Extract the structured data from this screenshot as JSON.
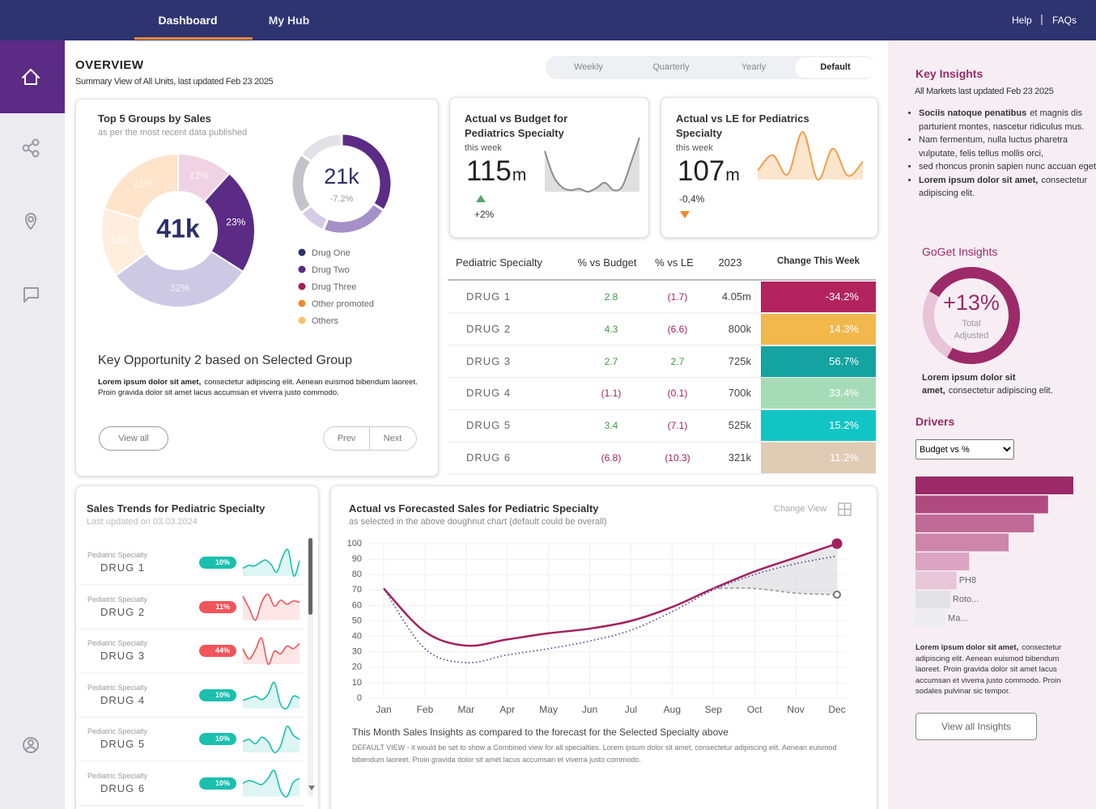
{
  "nav": {
    "tabs": [
      "Dashboard",
      "My Hub"
    ],
    "active_tab": 0,
    "links": [
      "Help",
      "FAQs"
    ]
  },
  "overview": {
    "title": "OVERVIEW",
    "subtitle": "Summary View of All Units, last updated Feb 23 2025",
    "periods": [
      "Weekly",
      "Quarterly",
      "Yearly",
      "Default"
    ],
    "active_period": 3
  },
  "top_groups": {
    "title": "Top 5 Groups by Sales",
    "subtitle": "as per the most recent data published",
    "pie": {
      "type": "pie",
      "center_label": "41k",
      "values": [
        12,
        23,
        32,
        15,
        21
      ],
      "value_labels": [
        "12%",
        "23%",
        "32%",
        "15%",
        "21%"
      ],
      "colors": [
        "#efd3e4",
        "#5b2b85",
        "#cdc9e4",
        "#fdeedd",
        "#fde4cb"
      ]
    },
    "donut": {
      "type": "donut",
      "center_label": "21k",
      "center_sublabel": "-7.2%",
      "values": [
        34,
        22,
        9,
        20,
        15
      ],
      "colors": [
        "#5b2b85",
        "#a590c8",
        "#d6cce6",
        "#c2c2c8",
        "#e2e2e6"
      ]
    },
    "legend": [
      {
        "name": "Drug One",
        "color": "#2b2f6b"
      },
      {
        "name": "Drug Two",
        "color": "#5b2b85"
      },
      {
        "name": "Drug Three",
        "color": "#a3205f"
      },
      {
        "name": "Other promoted",
        "color": "#ee8a2d"
      },
      {
        "name": "Others",
        "color": "#f6c46a"
      }
    ],
    "opportunity": {
      "title": "Key Opportunity 2 based on Selected Group",
      "lead": "Lorem ipsum dolor sit amet,",
      "text": "consectetur adipiscing elit. Aenean euismod bibendum laoreet. Proin gravida dolor sit amet lacus accumsan et viverra justo commodo."
    },
    "buttons": [
      "View all",
      "Prev",
      "Next"
    ]
  },
  "kpis": [
    {
      "title": "Actual vs Budget for Pediatrics Specialty",
      "period": "this week",
      "value": 115,
      "unit": "m",
      "change": "+2%",
      "direction": "up",
      "arrow_color": "#5aa469",
      "color": "#8c8c8c",
      "spark": [
        78,
        45,
        30,
        26,
        28,
        24,
        29,
        36,
        26,
        31,
        62,
        96
      ]
    },
    {
      "title": "Actual vs LE for Pediatrics Specialty",
      "period": "this week",
      "value": 107,
      "unit": "m",
      "change": "-0,4%",
      "direction": "down",
      "arrow_color": "#ee8a2d",
      "color": "#f0a04b",
      "spark": [
        28,
        52,
        22,
        88,
        14,
        62,
        20,
        42
      ]
    }
  ],
  "table": {
    "header": [
      "Pediatric Specialty",
      "% vs Budget",
      "% vs LE",
      "2023",
      "Change This Week"
    ],
    "rows": [
      [
        "DRUG 1",
        "2.8",
        "(1.7)",
        "4.05m",
        "-34.2%"
      ],
      [
        "DRUG 2",
        "4.3",
        "(6.6)",
        "800k",
        "14.3%"
      ],
      [
        "DRUG 3",
        "2.7",
        "2.7",
        "725k",
        "56.7%"
      ],
      [
        "DRUG 4",
        "(1.1)",
        "(0.1)",
        "700k",
        "33.4%"
      ],
      [
        "DRUG 5",
        "3.4",
        "(7.1)",
        "525k",
        "15.2%"
      ],
      [
        "DRUG 6",
        "(6.8)",
        "(10.3)",
        "321k",
        "11.2%"
      ]
    ],
    "change_colors": [
      "#b3245e",
      "#f2b84b",
      "#14a3a0",
      "#a6dbb8",
      "#12c5c5",
      "#e0cbb5"
    ],
    "positive_color": "#3d9a3d",
    "negative_color": "#a3205f"
  },
  "sales_trends": {
    "title": "Sales Trends for Pediatric Specialty",
    "subtitle": "Last updated on 03.03.2024",
    "up_color": "#1bbfae",
    "down_color": "#f0555a",
    "items": [
      {
        "category": "Pediatric Specialty",
        "name": "DRUG 1",
        "change": "10%",
        "direction": "up",
        "spark": [
          40,
          48,
          46,
          55,
          62,
          50,
          30,
          70,
          88,
          20,
          60
        ]
      },
      {
        "category": "Pediatric Specialty",
        "name": "DRUG 2",
        "change": "11%",
        "direction": "down",
        "spark": [
          70,
          40,
          10,
          55,
          75,
          45,
          60,
          50,
          58,
          55
        ]
      },
      {
        "category": "Pediatric Specialty",
        "name": "DRUG 3",
        "change": "44%",
        "direction": "down",
        "spark": [
          50,
          30,
          48,
          70,
          20,
          45,
          40,
          55,
          50,
          60
        ]
      },
      {
        "category": "Pediatric Specialty",
        "name": "DRUG 4",
        "change": "10%",
        "direction": "up",
        "spark": [
          40,
          45,
          50,
          42,
          55,
          85,
          30,
          20,
          50,
          45
        ]
      },
      {
        "category": "Pediatric Specialty",
        "name": "DRUG 5",
        "change": "10%",
        "direction": "up",
        "spark": [
          45,
          50,
          40,
          55,
          45,
          20,
          35,
          80,
          60,
          50
        ]
      },
      {
        "category": "Pediatric Specialty",
        "name": "DRUG 6",
        "change": "10%",
        "direction": "up",
        "spark": [
          48,
          55,
          50,
          45,
          60,
          80,
          30,
          15,
          50,
          60
        ]
      }
    ]
  },
  "forecast_chart": {
    "type": "line",
    "title": "Actual vs Forecasted Sales for Pediatric Specialty",
    "subtitle": "as selected in the above doughnut chart (default could be overall)",
    "change_view": "Change View",
    "categories": [
      "Jan",
      "Feb",
      "Mar",
      "Apr",
      "May",
      "Jun",
      "Jul",
      "Aug",
      "Sep",
      "Oct",
      "Nov",
      "Dec"
    ],
    "series": [
      {
        "color": "#a3205f",
        "style": "solid",
        "end_marker": "filled",
        "values": [
          71,
          43,
          34,
          38,
          42,
          45,
          50,
          59,
          71,
          82,
          91,
          100
        ]
      },
      {
        "color": "#4b3f8a",
        "style": "dotted",
        "values": [
          71,
          32,
          23,
          28,
          32,
          37,
          44,
          56,
          70,
          80,
          87,
          92
        ]
      },
      {
        "color": "#9a9a9a",
        "style": "dashed",
        "end_marker": "hollow",
        "fill_to_series": 0,
        "values": [
          null,
          null,
          null,
          null,
          null,
          null,
          null,
          null,
          71,
          71,
          68,
          67
        ]
      }
    ],
    "ylim": [
      0,
      100
    ],
    "yticks": [
      0,
      10,
      20,
      30,
      40,
      50,
      60,
      70,
      80,
      90,
      100
    ],
    "grid": true,
    "footer": "This Month Sales Insights as compared to the forecast for the Selected Specialty above",
    "note": "DEFAULT VIEW -  it would be set to show a Combined view for all specialties. Lorem ipsum dolor sit amet, consectetur adipiscing elit. Aenean euismod bibendum laoreet. Proin gravida dolor sit amet lacus accumsan et viverra justo commodo."
  },
  "insights": {
    "title": "Key Insights",
    "subtitle": "All Markets last updated Feb 23 2025",
    "bullets": [
      {
        "lead": "Sociis natoque penatibus",
        "text": "et magnis dis parturient montes, nascetur ridiculus mus."
      },
      {
        "text": "Nam fermentum, nulla luctus pharetra vulputate, felis tellus mollis orci,"
      },
      {
        "text": "sed rhoncus pronin sapien nunc accuan eget."
      },
      {
        "lead": "Lorem ipsum dolor sit amet,",
        "text": "consectetur adipiscing elit."
      }
    ],
    "goget": {
      "title": "GoGet Insights",
      "value": "+13%",
      "label_1": "Total",
      "label_2": "Adjusted",
      "ring_fill": 75,
      "lead": "Lorem ipsum dolor sit amet,",
      "text": "consectetur adipiscing elit."
    },
    "drivers": {
      "title": "Drivers",
      "selector": "Budget vs %",
      "bars": {
        "type": "bar",
        "values": [
          100,
          84,
          75,
          59,
          34,
          26,
          22,
          19
        ],
        "xlim": [
          0,
          100
        ],
        "labels": [
          null,
          null,
          null,
          null,
          null,
          "PH8",
          "Roto...",
          "Ma..."
        ],
        "colors": [
          "#9c2a68",
          "#b04b80",
          "#c06a96",
          "#cd86a9",
          "#dba5c3",
          "#e7c6d8",
          "#e3e3e6",
          "#ededf0"
        ]
      },
      "lead": "Lorem ipsum dolor sit amet,",
      "text": "consectetur adipiscing elit. Aenean euismod bibendum laoreet. Proin gravida dolor sit amet lacus accumsan et viverra justo commodo. Proin sodales pulvinar sic tempor.",
      "button": "View all Insights"
    }
  }
}
